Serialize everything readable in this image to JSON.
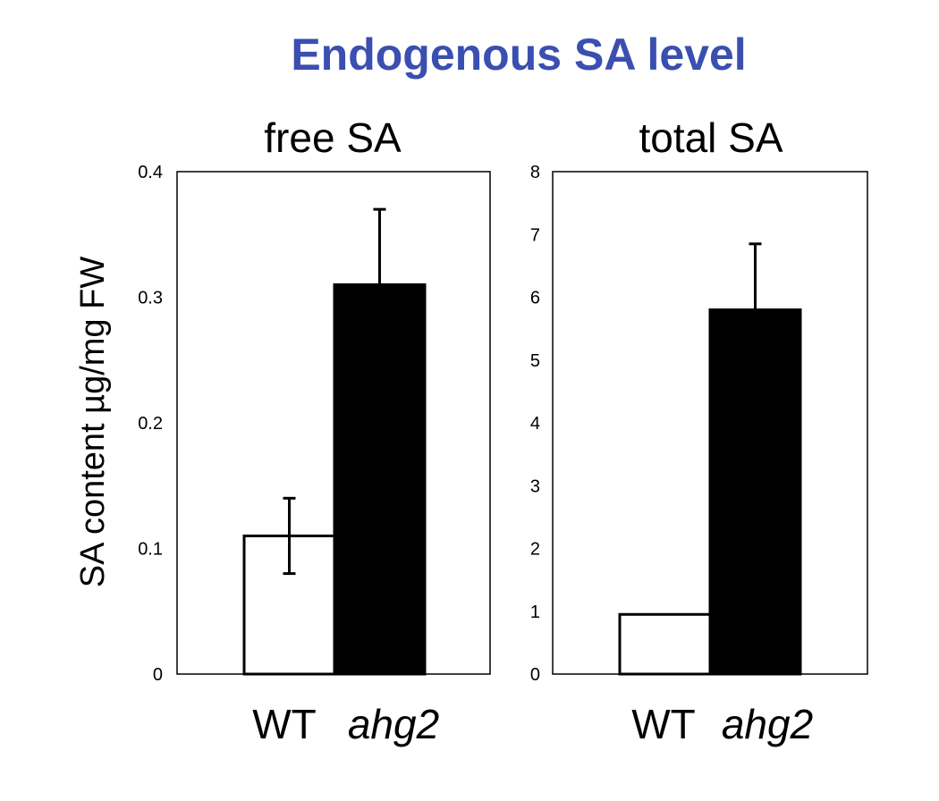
{
  "figure": {
    "title": "Endogenous SA level",
    "title_color": "#3a4fb0",
    "ylabel": "SA content µg/mg FW"
  },
  "chart_data": [
    {
      "type": "bar",
      "title": "free SA",
      "categories": [
        "WT",
        "ahg2"
      ],
      "values": [
        0.11,
        0.31
      ],
      "error": [
        0.03,
        0.06
      ],
      "bar_colors": [
        "#ffffff",
        "#000000"
      ],
      "ylim": [
        0,
        0.4
      ],
      "yticks": [
        "0",
        "0.1",
        "0.2",
        "0.3",
        "0.4"
      ],
      "ylabel": "SA content µg/mg FW",
      "grid": false
    },
    {
      "type": "bar",
      "title": "total SA",
      "categories": [
        "WT",
        "ahg2"
      ],
      "values": [
        0.95,
        5.8
      ],
      "error": [
        0,
        1.05
      ],
      "bar_colors": [
        "#ffffff",
        "#000000"
      ],
      "ylim": [
        0,
        8
      ],
      "yticks": [
        "0",
        "1",
        "2",
        "3",
        "4",
        "5",
        "6",
        "7",
        "8"
      ],
      "grid": false
    }
  ]
}
